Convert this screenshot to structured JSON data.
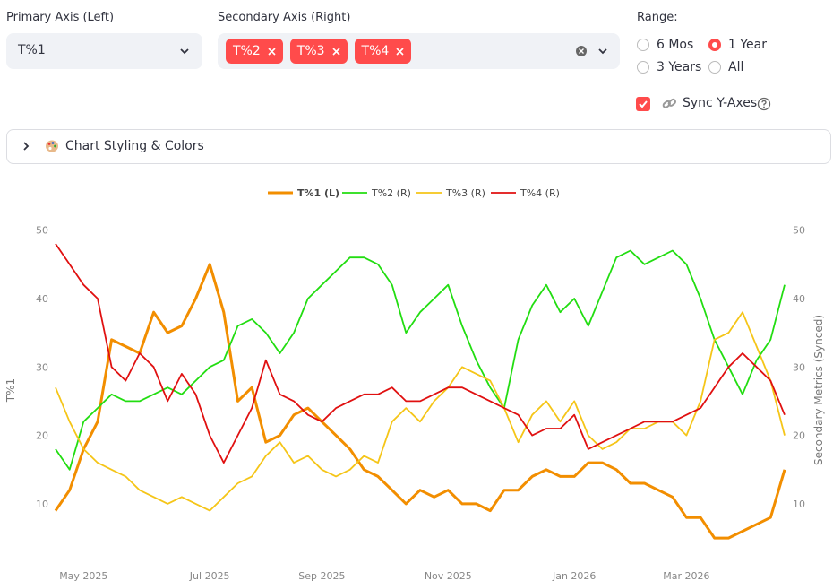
{
  "controls": {
    "primary_label": "Primary Axis (Left)",
    "primary_value": "T%1",
    "secondary_label": "Secondary Axis (Right)",
    "secondary_tags": [
      "T%2",
      "T%3",
      "T%4"
    ],
    "range_label": "Range:",
    "range_options": [
      "6 Mos",
      "1 Year",
      "3 Years",
      "All"
    ],
    "range_selected": 1,
    "sync_label": "Sync Y-Axes",
    "sync_checked": true,
    "expander_label": "Chart Styling & Colors"
  },
  "chart_data": {
    "type": "line",
    "categories": [
      null,
      null,
      "May 2025",
      null,
      null,
      null,
      null,
      null,
      null,
      null,
      null,
      "Jul 2025",
      null,
      null,
      null,
      null,
      null,
      null,
      null,
      "Sep 2025",
      null,
      null,
      null,
      null,
      null,
      null,
      null,
      null,
      "Nov 2025",
      null,
      null,
      null,
      null,
      null,
      null,
      null,
      null,
      "Jan 2026",
      null,
      null,
      null,
      null,
      null,
      null,
      null,
      "Mar 2026",
      null,
      null,
      null,
      null,
      null,
      null,
      null
    ],
    "series": [
      {
        "name": "T%1 (L)",
        "color": "#f28e00",
        "axis": "y",
        "values": [
          9,
          12,
          18,
          22,
          34,
          33,
          32,
          38,
          35,
          36,
          40,
          45,
          38,
          25,
          27,
          19,
          20,
          23,
          24,
          22,
          20,
          18,
          15,
          14,
          12,
          10,
          12,
          11,
          12,
          10,
          10,
          9,
          12,
          12,
          14,
          15,
          14,
          14,
          16,
          16,
          15,
          13,
          13,
          12,
          11,
          8,
          8,
          5,
          5,
          6,
          7,
          8,
          15
        ]
      },
      {
        "name": "T%2 (R)",
        "color": "#22dd11",
        "axis": "y2",
        "values": [
          18,
          15,
          22,
          24,
          26,
          25,
          25,
          26,
          27,
          26,
          28,
          30,
          31,
          36,
          37,
          35,
          32,
          35,
          40,
          42,
          44,
          46,
          46,
          45,
          42,
          35,
          38,
          40,
          42,
          36,
          31,
          27,
          24,
          34,
          39,
          42,
          38,
          40,
          36,
          41,
          46,
          47,
          45,
          46,
          47,
          45,
          40,
          34,
          30,
          26,
          31,
          34,
          42
        ]
      },
      {
        "name": "T%3 (R)",
        "color": "#f5c518",
        "axis": "y2",
        "values": [
          27,
          22,
          18,
          16,
          15,
          14,
          12,
          11,
          10,
          11,
          10,
          9,
          11,
          13,
          14,
          17,
          19,
          16,
          17,
          15,
          14,
          15,
          17,
          16,
          22,
          24,
          22,
          25,
          27,
          30,
          29,
          28,
          24,
          19,
          23,
          25,
          22,
          25,
          20,
          18,
          19,
          21,
          21,
          22,
          22,
          20,
          25,
          34,
          35,
          38,
          33,
          28,
          20
        ]
      },
      {
        "name": "T%4 (R)",
        "color": "#e01010",
        "axis": "y2",
        "values": [
          48,
          45,
          42,
          40,
          30,
          28,
          32,
          30,
          25,
          29,
          26,
          20,
          16,
          20,
          24,
          31,
          26,
          25,
          23,
          22,
          24,
          25,
          26,
          26,
          27,
          25,
          25,
          26,
          27,
          27,
          26,
          25,
          24,
          23,
          20,
          21,
          21,
          23,
          18,
          19,
          20,
          21,
          22,
          22,
          22,
          23,
          24,
          27,
          30,
          32,
          30,
          28,
          23
        ]
      }
    ],
    "ylabel": "T%1",
    "y2label": "Secondary Metrics (Synced)",
    "ylim": [
      2,
      51
    ],
    "yticks": [
      10,
      20,
      30,
      40,
      50
    ],
    "y2lim": [
      2,
      51
    ],
    "y2ticks": [
      10,
      20,
      30,
      40,
      50
    ],
    "grid": false,
    "legend": "top"
  }
}
